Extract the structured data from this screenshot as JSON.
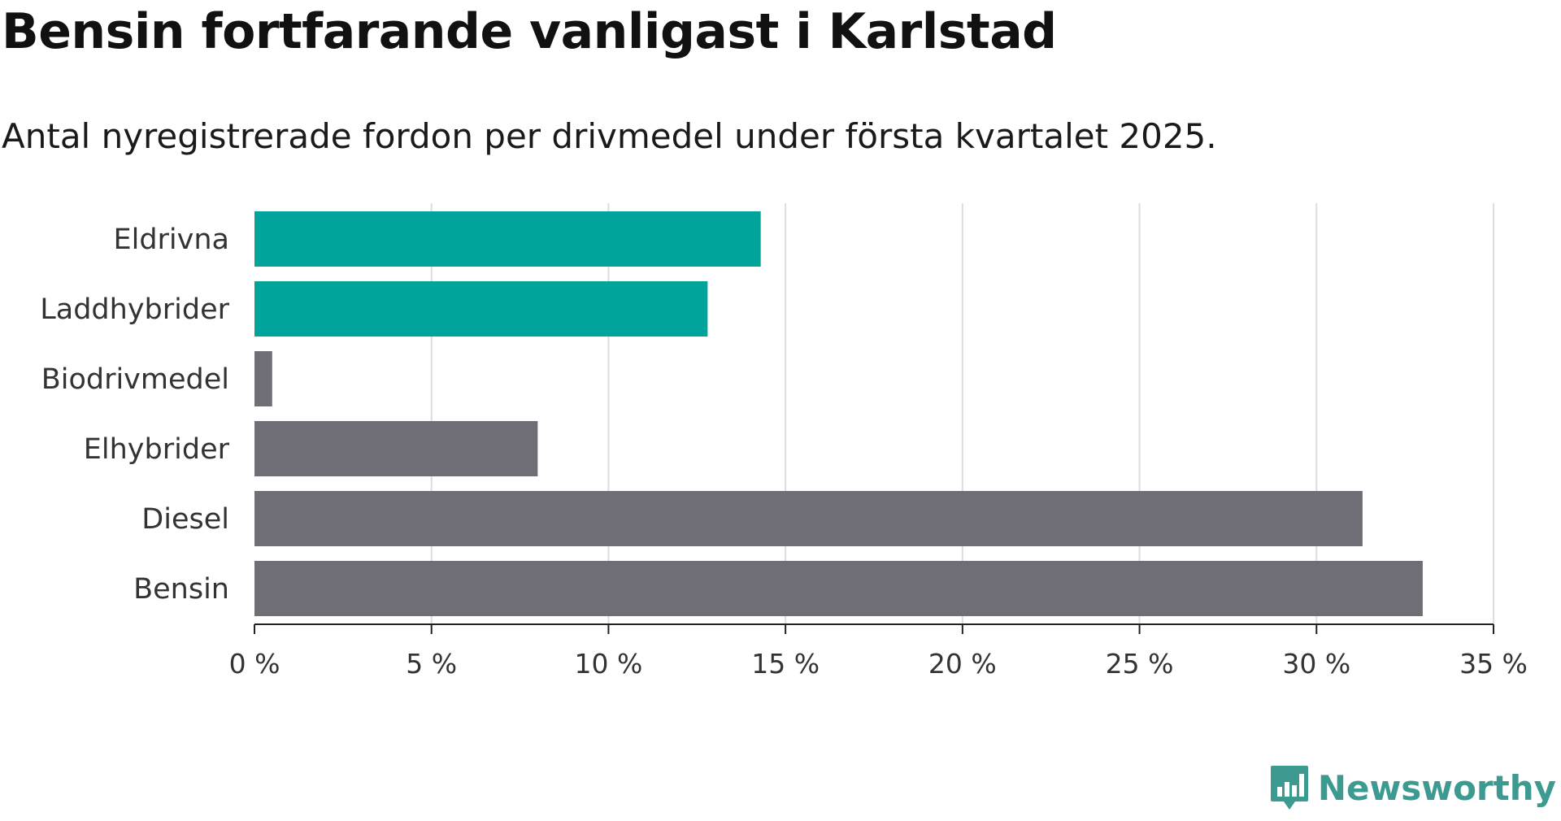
{
  "title": "Bensin fortfarande vanligast i Karlstad",
  "subtitle": "Antal nyregistrerade fordon per drivmedel under första kvartalet 2025.",
  "logo": {
    "text": "Newsworthy",
    "icon": "newsworthy-logo-icon"
  },
  "colors": {
    "highlight": "#00a49a",
    "default": "#6f6e77",
    "grid": "#dddddd",
    "axis": "#222222",
    "logo": "#3d9a90"
  },
  "chart_data": {
    "type": "bar",
    "orientation": "horizontal",
    "categories": [
      "Eldrivna",
      "Laddhybrider",
      "Biodrivmedel",
      "Elhybrider",
      "Diesel",
      "Bensin"
    ],
    "values": [
      14.3,
      12.8,
      0.5,
      8.0,
      31.3,
      33.0
    ],
    "highlighted": [
      true,
      true,
      false,
      false,
      false,
      false
    ],
    "xlim": [
      0,
      35
    ],
    "xticks": [
      0,
      5,
      10,
      15,
      20,
      25,
      30,
      35
    ],
    "xtick_labels": [
      "0 %",
      "5 %",
      "10 %",
      "15 %",
      "20 %",
      "25 %",
      "30 %",
      "35 %"
    ],
    "grid": true
  }
}
